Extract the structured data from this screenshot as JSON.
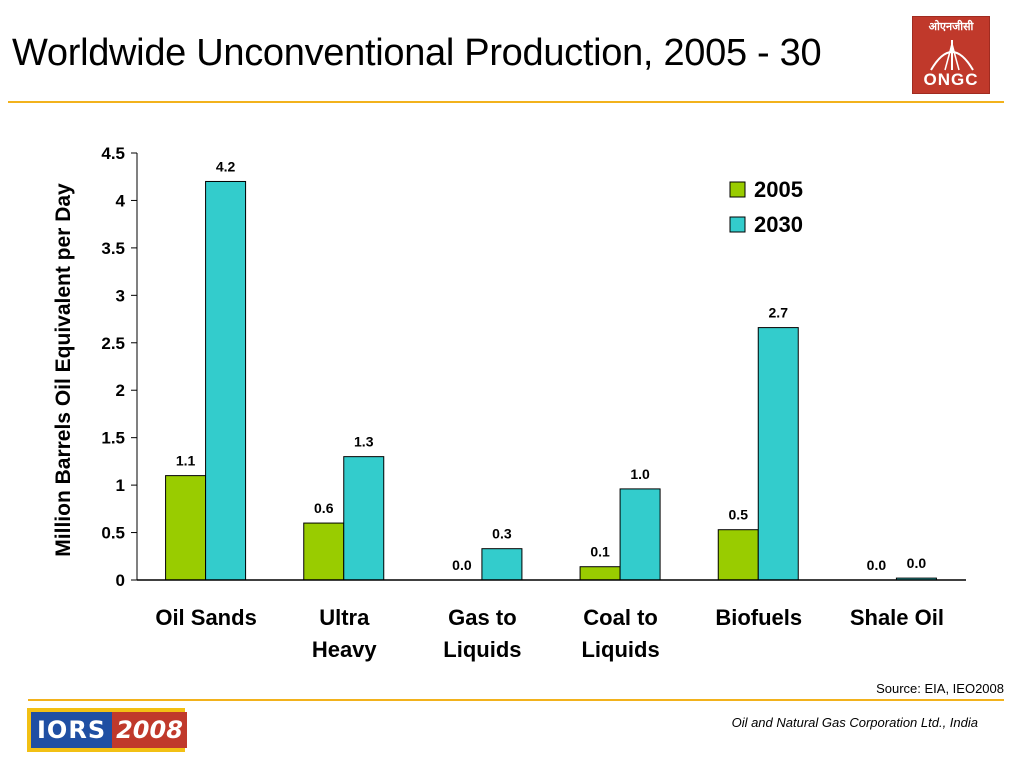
{
  "header": {
    "title": "Worldwide Unconventional Production, 2005 - 30"
  },
  "logos": {
    "ongc_hindi": "ओएनजीसी",
    "ongc_text": "ONGC",
    "iors_left": "IORS",
    "iors_right": "2008"
  },
  "footer": {
    "source": "Source:  EIA, IEO2008",
    "company": "Oil and Natural Gas Corporation Ltd., India"
  },
  "colors": {
    "series_2005": "#99cc00",
    "series_2030": "#33cccc",
    "accent_rule": "#f2b21c"
  },
  "chart_data": {
    "type": "bar",
    "title": "Worldwide Unconventional Production, 2005 - 30",
    "ylabel": "Million Barrels Oil Equivalent per Day",
    "xlabel": "",
    "ylim": [
      0,
      4.5
    ],
    "yticks": [
      "0",
      "0.5",
      "1",
      "1.5",
      "2",
      "2.5",
      "3",
      "3.5",
      "4",
      "4.5"
    ],
    "ytick_values": [
      0,
      0.5,
      1,
      1.5,
      2,
      2.5,
      3,
      3.5,
      4,
      4.5
    ],
    "categories": [
      [
        "Oil Sands"
      ],
      [
        "Ultra",
        "Heavy"
      ],
      [
        "Gas to",
        "Liquids"
      ],
      [
        "Coal to",
        "Liquids"
      ],
      [
        "Biofuels"
      ],
      [
        "Shale Oil"
      ]
    ],
    "series": [
      {
        "name": "2005",
        "color": "#99cc00",
        "values": [
          1.1,
          0.6,
          0.0,
          0.14,
          0.53,
          0.0
        ],
        "labels": [
          "1.1",
          "0.6",
          "0.0",
          "0.1",
          "0.5",
          "0.0"
        ]
      },
      {
        "name": "2030",
        "color": "#33cccc",
        "values": [
          4.2,
          1.3,
          0.33,
          0.96,
          2.66,
          0.02
        ],
        "labels": [
          "4.2",
          "1.3",
          "0.3",
          "1.0",
          "2.7",
          "0.0"
        ]
      }
    ],
    "grid": false,
    "legend": "top-right"
  }
}
